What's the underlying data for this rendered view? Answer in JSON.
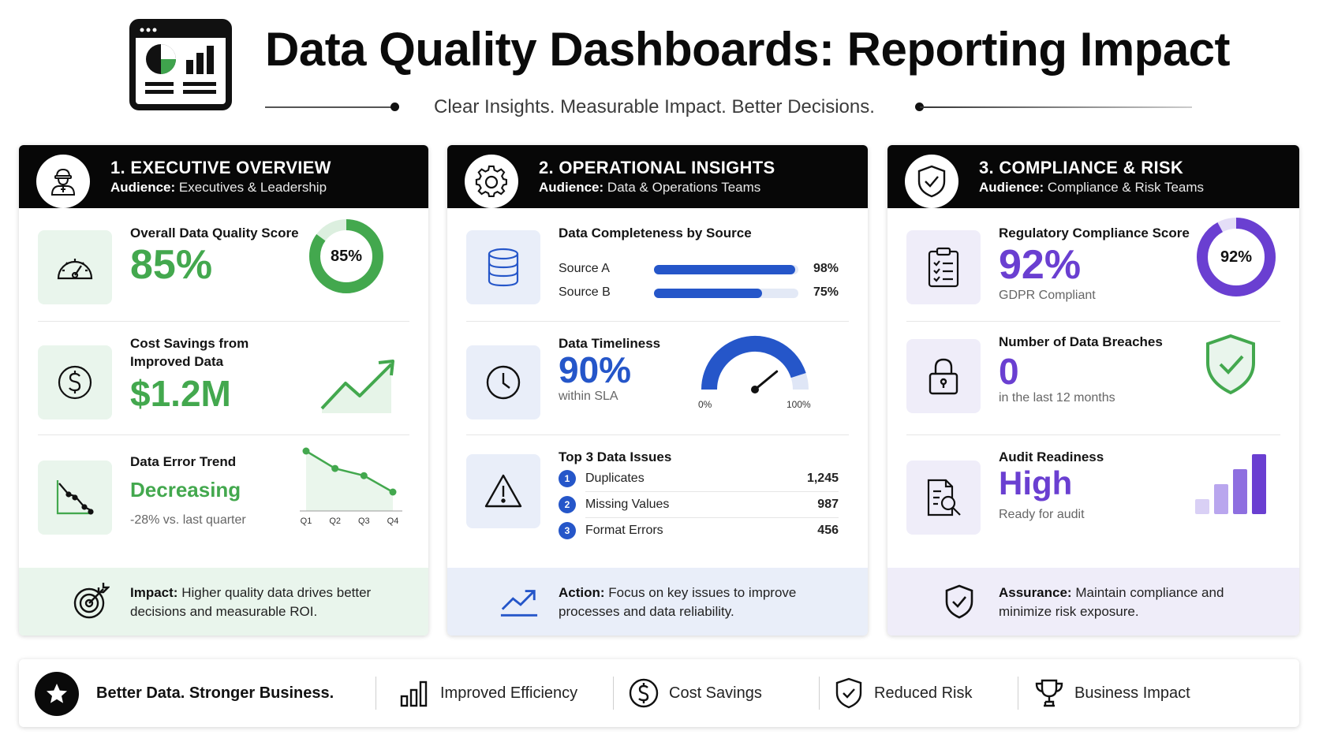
{
  "header": {
    "title": "Data Quality Dashboards: Reporting Impact",
    "subtitle": "Clear Insights. Measurable Impact. Better Decisions."
  },
  "colors": {
    "green": "#43a84e",
    "blue": "#2556c9",
    "purple": "#6a3fd1",
    "header_bg": "#070707"
  },
  "panels": {
    "executive": {
      "title": "1. EXECUTIVE OVERVIEW",
      "audience_label": "Audience:",
      "audience": "Executives & Leadership",
      "icon": "executive-user-icon",
      "quality": {
        "label": "Overall Data Quality Score",
        "value": "85%",
        "ring_label": "85%",
        "ring_fraction": 0.85,
        "icon": "gauge-icon"
      },
      "savings": {
        "label_line1": "Cost Savings from",
        "label_line2": "Improved Data",
        "value": "$1.2M",
        "icon": "dollar-icon"
      },
      "trend": {
        "label": "Data Error Trend",
        "value": "Decreasing",
        "sub": "-28% vs. last quarter",
        "icon": "downtrend-icon",
        "chart_data": {
          "type": "line",
          "categories": [
            "Q1",
            "Q2",
            "Q3",
            "Q4"
          ],
          "values": [
            4,
            2.3,
            1.6,
            0
          ],
          "ylim": [
            0,
            4
          ]
        }
      },
      "impact": {
        "bold": "Impact:",
        "text": "Higher quality data drives better decisions and measurable ROI.",
        "icon": "target-icon"
      }
    },
    "operational": {
      "title": "2. OPERATIONAL INSIGHTS",
      "audience_label": "Audience:",
      "audience": "Data & Operations Teams",
      "icon": "gear-icon",
      "completeness": {
        "label": "Data Completeness by Source",
        "icon": "database-icon",
        "sources": [
          {
            "name": "Source A",
            "value": "98%",
            "fraction": 0.98
          },
          {
            "name": "Source B",
            "value": "75%",
            "fraction": 0.75
          }
        ]
      },
      "timeliness": {
        "label": "Data Timeliness",
        "value": "90%",
        "sub": "within SLA",
        "icon": "clock-icon",
        "gauge_fraction": 0.9,
        "gauge_min": "0%",
        "gauge_max": "100%"
      },
      "issues": {
        "label": "Top 3 Data Issues",
        "icon": "warning-icon",
        "items": [
          {
            "n": "1",
            "name": "Duplicates",
            "count": "1,245"
          },
          {
            "n": "2",
            "name": "Missing Values",
            "count": "987"
          },
          {
            "n": "3",
            "name": "Format Errors",
            "count": "456"
          }
        ]
      },
      "action": {
        "bold": "Action:",
        "text": "Focus on key issues to improve processes and data reliability.",
        "icon": "uptrend-icon"
      }
    },
    "compliance": {
      "title": "3. COMPLIANCE & RISK",
      "audience_label": "Audience:",
      "audience": "Compliance & Risk Teams",
      "icon": "shield-check-icon",
      "score": {
        "label": "Regulatory Compliance Score",
        "value": "92%",
        "sub": "GDPR Compliant",
        "ring_label": "92%",
        "ring_fraction": 0.92,
        "icon": "clipboard-icon"
      },
      "breaches": {
        "label": "Number of Data Breaches",
        "value": "0",
        "sub": "in the last 12 months",
        "icon": "lock-icon"
      },
      "audit": {
        "label": "Audit Readiness",
        "value": "High",
        "sub": "Ready for audit",
        "icon": "document-search-icon",
        "bars": [
          0.25,
          0.5,
          0.75,
          1.0
        ]
      },
      "assurance": {
        "bold": "Assurance:",
        "text": "Maintain compliance and minimize risk exposure.",
        "icon": "shield-icon"
      }
    }
  },
  "strip": {
    "tagline": "Better Data. Stronger Business.",
    "items": [
      {
        "label": "Improved Efficiency",
        "icon": "bar-chart-icon"
      },
      {
        "label": "Cost Savings",
        "icon": "dollar-icon"
      },
      {
        "label": "Reduced Risk",
        "icon": "shield-check-icon"
      },
      {
        "label": "Business Impact",
        "icon": "trophy-icon"
      }
    ]
  }
}
